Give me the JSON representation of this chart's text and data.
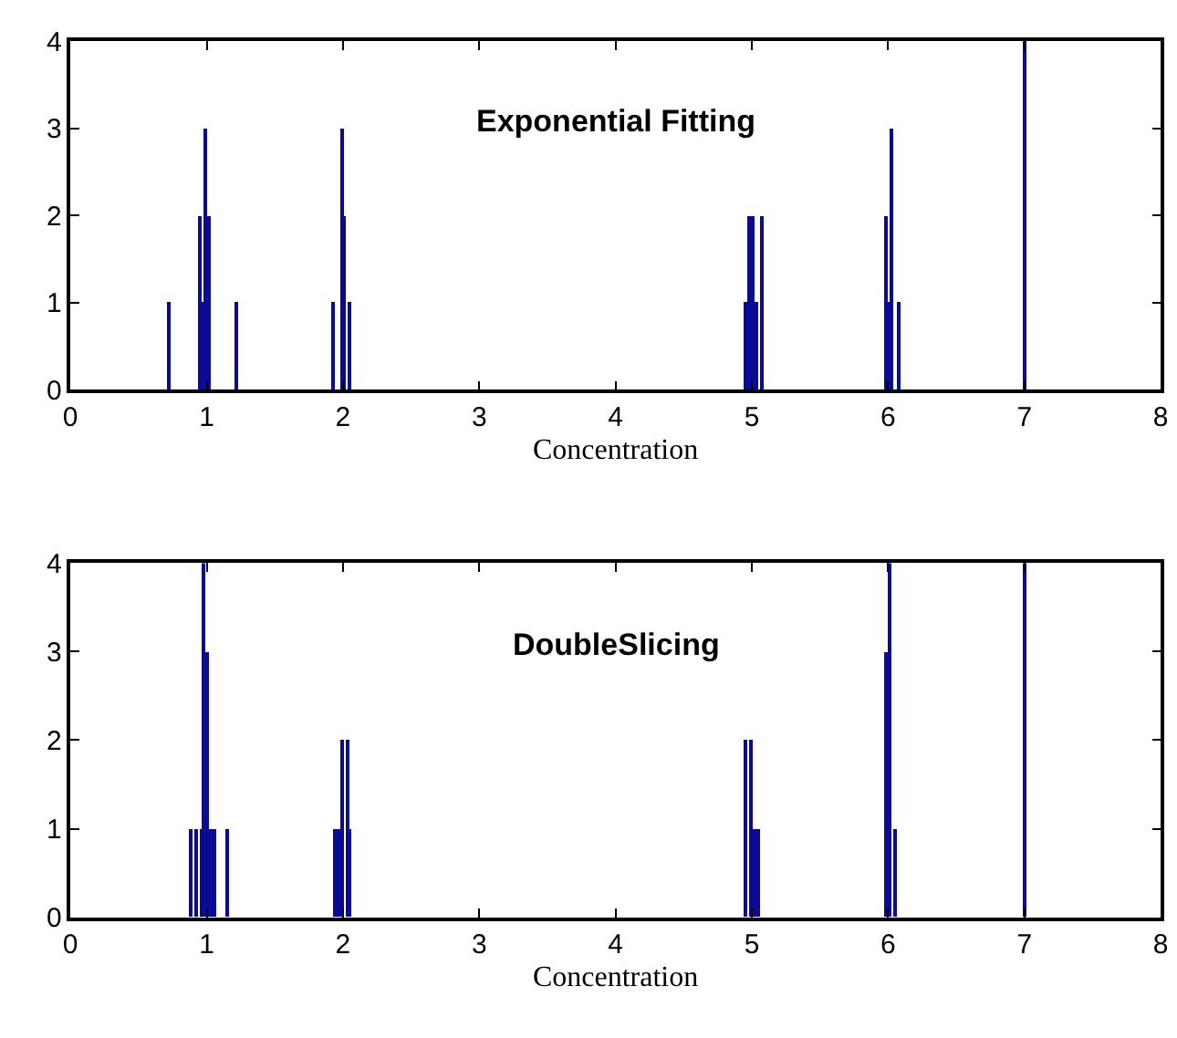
{
  "chart_data": [
    {
      "type": "bar",
      "title": "Exponential Fitting",
      "xlabel": "Concentration",
      "x": [
        0.73,
        0.95,
        0.97,
        0.99,
        1.02,
        1.22,
        1.93,
        1.99,
        2.01,
        2.05,
        4.95,
        4.98,
        5.01,
        5.04,
        5.07,
        5.98,
        6.0,
        6.02,
        6.08,
        7.01
      ],
      "values": [
        1,
        2,
        1,
        3,
        2,
        1,
        1,
        3,
        2,
        1,
        1,
        2,
        2,
        1,
        2,
        2,
        1,
        3,
        1,
        4
      ],
      "color": "#0a0a96",
      "xlim": [
        0,
        8
      ],
      "ylim": [
        0,
        4
      ],
      "xticks": [
        0,
        1,
        2,
        3,
        4,
        5,
        6,
        7,
        8
      ],
      "yticks": [
        0,
        1,
        2,
        3,
        4
      ]
    },
    {
      "type": "bar",
      "title": "DoubleSlicing",
      "xlabel": "Concentration",
      "x": [
        0.89,
        0.92,
        0.96,
        0.98,
        1.01,
        1.03,
        1.06,
        1.15,
        1.94,
        1.97,
        1.99,
        2.03,
        2.05,
        4.96,
        4.99,
        5.02,
        5.05,
        5.98,
        6.01,
        6.05,
        7.01
      ],
      "values": [
        1,
        1,
        1,
        4,
        3,
        1,
        1,
        1,
        1,
        1,
        2,
        2,
        1,
        2,
        2,
        1,
        1,
        3,
        4,
        1,
        4
      ],
      "color": "#0a0a96",
      "xlim": [
        0,
        8
      ],
      "ylim": [
        0,
        4
      ],
      "xticks": [
        0,
        1,
        2,
        3,
        4,
        5,
        6,
        7,
        8
      ],
      "yticks": [
        0,
        1,
        2,
        3,
        4
      ]
    }
  ]
}
